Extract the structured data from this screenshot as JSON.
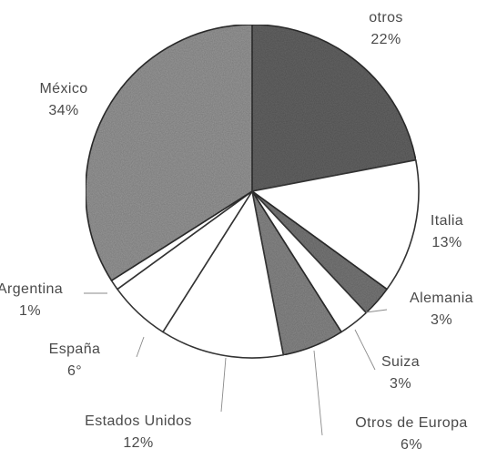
{
  "chart_data": {
    "type": "pie",
    "title": "",
    "slices": [
      {
        "label": "otros",
        "value": 22,
        "display": "22%",
        "fill": "#666666"
      },
      {
        "label": "Italia",
        "value": 13,
        "display": "13%",
        "fill": "#ffffff"
      },
      {
        "label": "Alemania",
        "value": 3,
        "display": "3%",
        "fill": "#7a7a7a"
      },
      {
        "label": "Suiza",
        "value": 3,
        "display": "3%",
        "fill": "#ffffff"
      },
      {
        "label": "Otros de Europa",
        "value": 6,
        "display": "6%",
        "fill": "#8a8a8a"
      },
      {
        "label": "Estados Unidos",
        "value": 12,
        "display": "12%",
        "fill": "#ffffff"
      },
      {
        "label": "España",
        "value": 6,
        "display": "6°",
        "fill": "#ffffff"
      },
      {
        "label": "Argentina",
        "value": 1,
        "display": "1%",
        "fill": "#ffffff"
      },
      {
        "label": "México",
        "value": 34,
        "display": "34%",
        "fill": "#9a9a9a"
      }
    ]
  }
}
